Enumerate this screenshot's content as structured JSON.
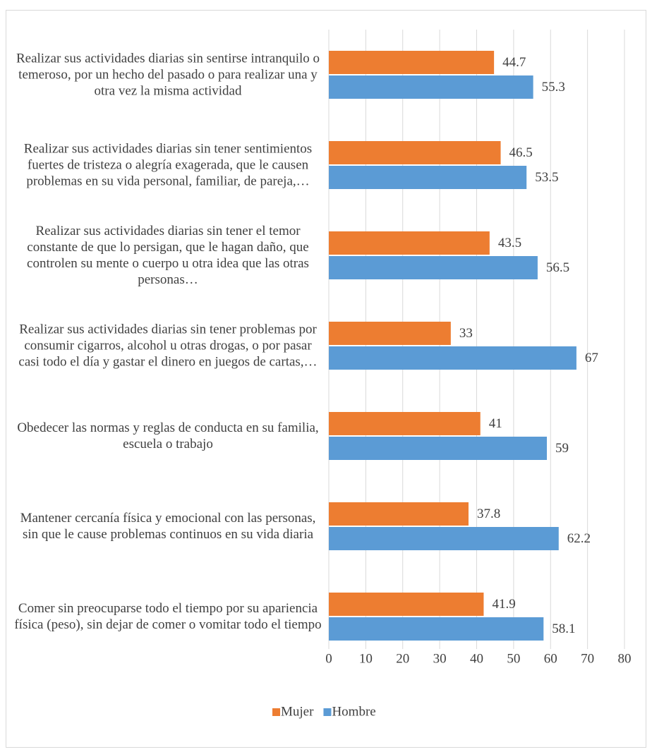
{
  "chart_data": {
    "type": "barh",
    "categories": [
      "Realizar sus actividades diarias sin sentirse intranquilo o temeroso, por un hecho del pasado o para realizar una y otra vez la misma actividad",
      "Realizar sus actividades diarias sin tener sentimientos fuertes de tristeza o alegría exagerada, que le causen problemas en su vida personal, familiar, de pareja,…",
      "Realizar sus actividades diarias sin tener el temor constante de que lo persigan, que le hagan daño, que controlen su mente o cuerpo u otra idea que las otras personas…",
      "Realizar sus actividades diarias sin tener problemas por consumir cigarros, alcohol u otras drogas, o por pasar casi todo el día y gastar el dinero en juegos de cartas,…",
      "Obedecer las normas y reglas de conducta en su familia, escuela o trabajo",
      "Mantener cercanía física y emocional con las personas, sin que le cause problemas continuos en su vida diaria",
      "Comer sin preocuparse todo el tiempo por su apariencia física (peso), sin dejar de comer o vomitar todo el tiempo"
    ],
    "series": [
      {
        "name": "Mujer",
        "color": "#ED7D31",
        "values": [
          44.7,
          46.5,
          43.5,
          33,
          41,
          37.8,
          41.9
        ]
      },
      {
        "name": "Hombre",
        "color": "#5B9BD5",
        "values": [
          55.3,
          53.5,
          56.5,
          67,
          59,
          62.2,
          58.1
        ]
      }
    ],
    "xlim": [
      0,
      80
    ],
    "xticks": [
      0,
      10,
      20,
      30,
      40,
      50,
      60,
      70,
      80
    ],
    "grid": true,
    "legend": "bottom"
  }
}
